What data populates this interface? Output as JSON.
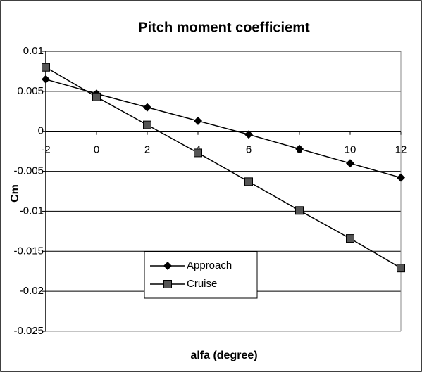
{
  "chart_data": {
    "type": "line",
    "title": "Pitch moment coefficiemt",
    "x_label": "alfa (degree)",
    "y_label": "Cm",
    "x": [
      -2,
      0,
      2,
      4,
      6,
      8,
      10,
      12
    ],
    "series": [
      {
        "name": "Approach",
        "color": "#000000",
        "marker": "diamond",
        "values": [
          0.0065,
          0.0047,
          0.003,
          0.0013,
          -0.0004,
          -0.0022,
          -0.004,
          -0.0058
        ]
      },
      {
        "name": "Cruise",
        "color": "#000000",
        "marker": "square",
        "values": [
          0.008,
          0.0043,
          0.0008,
          -0.0027,
          -0.0063,
          -0.0099,
          -0.0134,
          -0.0171
        ]
      }
    ],
    "xlim": [
      -2,
      12
    ],
    "xticks": [
      -2,
      0,
      2,
      4,
      6,
      8,
      10,
      12
    ],
    "ylim": [
      -0.025,
      0.01
    ],
    "yticks": [
      0.01,
      0.005,
      0,
      -0.005,
      -0.01,
      -0.015,
      -0.02,
      -0.025
    ],
    "grid": true,
    "legend": "lower left"
  }
}
